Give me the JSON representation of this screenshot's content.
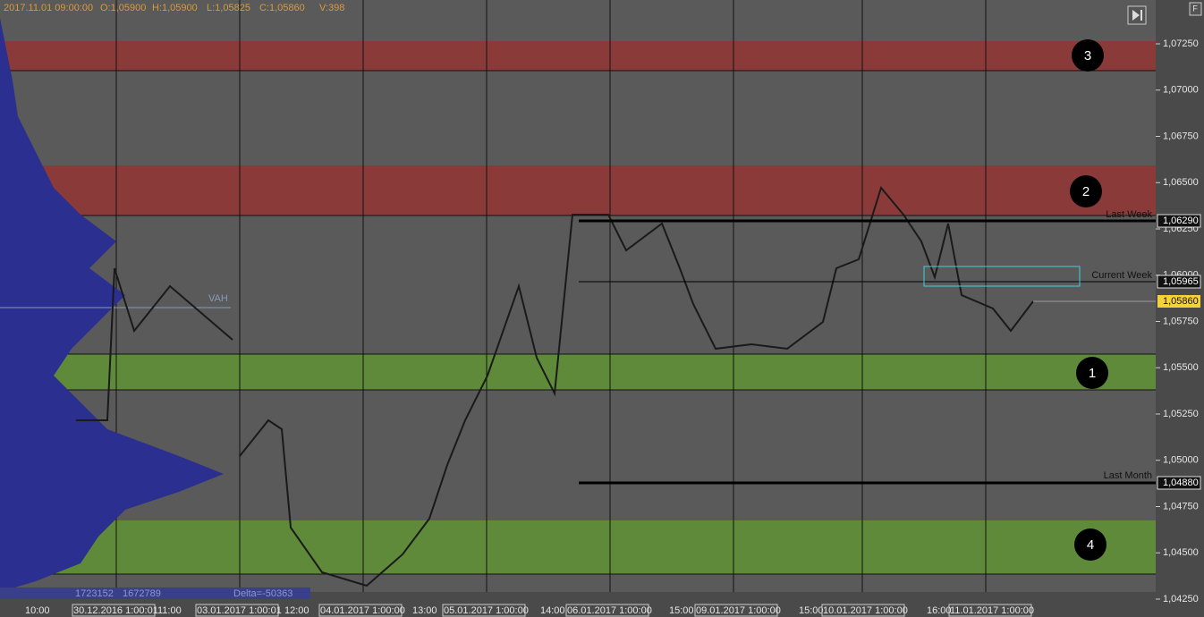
{
  "header": {
    "date": "2017.11.01 09:00:00",
    "open": "O:1,05900",
    "high": "H:1,05900",
    "low": "L:1,05825",
    "close": "C:1,05860",
    "volume": "V:398"
  },
  "corner_button": "F",
  "price_axis": [
    "1,07250",
    "1,07000",
    "1,06750",
    "1,06500",
    "1,06250",
    "1,06000",
    "1,05750",
    "1,05500",
    "1,05250",
    "1,05000",
    "1,04750",
    "1,04500",
    "1,04250"
  ],
  "levels": [
    {
      "label": "Last Week",
      "price": "1,06290"
    },
    {
      "label": "Current Week",
      "price": "1,05965"
    },
    {
      "label": "Last Month",
      "price": "1,04880"
    }
  ],
  "current_price": "1,05860",
  "zones": [
    "3",
    "2",
    "1",
    "4"
  ],
  "profile": {
    "vah": "VAH",
    "volume_a": "1723152",
    "volume_b": "1672789",
    "delta": "Delta=-50363"
  },
  "time_axis": [
    "10:00",
    "30.12.2016 1:00:01",
    "11:00",
    "03.01.2017 1:00:01",
    "12:00",
    "04.01.2017 1:00:00",
    "13:00",
    "05.01.2017 1:00:00",
    "14:00",
    "06.01.2017 1:00:00",
    "15:00",
    "09.01.2017 1:00:00",
    "15:00",
    "10.01.2017 1:00:00",
    "16:00",
    "11.01.2017 1:00:00"
  ]
}
